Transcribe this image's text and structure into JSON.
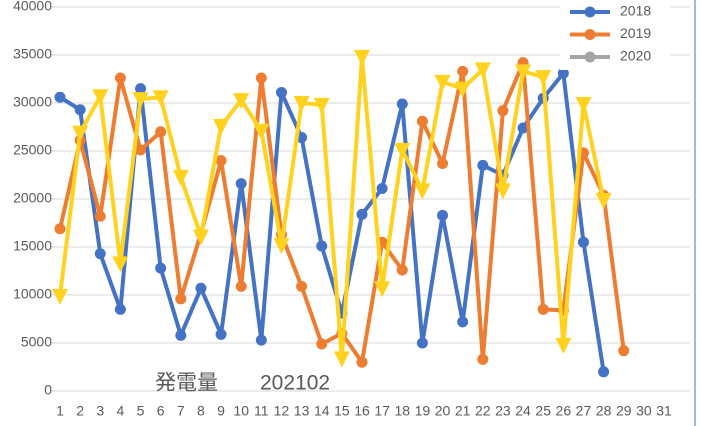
{
  "chart_data": {
    "type": "line",
    "title": "発電量　　202102",
    "categories": [
      "1",
      "2",
      "3",
      "4",
      "5",
      "6",
      "7",
      "8",
      "9",
      "10",
      "11",
      "12",
      "13",
      "14",
      "15",
      "16",
      "17",
      "18",
      "19",
      "20",
      "21",
      "22",
      "23",
      "24",
      "25",
      "26",
      "27",
      "28",
      "29",
      "30",
      "31"
    ],
    "ylim": [
      0,
      40000
    ],
    "yticks": [
      0,
      5000,
      10000,
      15000,
      20000,
      25000,
      30000,
      35000,
      40000
    ],
    "grid": true,
    "legend": "top-right",
    "series": [
      {
        "name": "2018",
        "color": "#4472c4",
        "marker": "circle",
        "values": [
          30600,
          29300,
          14300,
          8500,
          31500,
          12800,
          5800,
          10700,
          5900,
          21600,
          5300,
          31100,
          26400,
          15100,
          8100,
          18400,
          21100,
          29900,
          5000,
          18300,
          7200,
          23500,
          22500,
          27400,
          30500,
          33100,
          15500,
          2000,
          null,
          null,
          null
        ]
      },
      {
        "name": "2019",
        "color": "#ed7d31",
        "marker": "circle",
        "values": [
          16900,
          26100,
          18200,
          32600,
          25100,
          27000,
          9600,
          16400,
          24000,
          10900,
          32600,
          16300,
          10900,
          4900,
          6000,
          3000,
          15500,
          12600,
          28100,
          23700,
          33300,
          3300,
          29200,
          34200,
          8500,
          8400,
          24800,
          20400,
          4200,
          null,
          null
        ]
      },
      {
        "name": "2020",
        "color": "#a5a5a5",
        "marker": "circle",
        "values": [
          null,
          null,
          null,
          null,
          null,
          null,
          null,
          null,
          null,
          null,
          null,
          null,
          null,
          null,
          null,
          null,
          null,
          null,
          null,
          null,
          null,
          null,
          null,
          null,
          null,
          null,
          null,
          null,
          null,
          null,
          null
        ]
      },
      {
        "color": "#ffd21f",
        "marker": "triangle-down",
        "values": [
          9900,
          26900,
          30700,
          13300,
          30400,
          30600,
          22300,
          16100,
          27600,
          30300,
          27100,
          15200,
          30000,
          29800,
          3400,
          34800,
          10700,
          25100,
          20900,
          32200,
          31500,
          33500,
          20900,
          33300,
          32700,
          4800,
          29900,
          19900,
          null,
          null,
          null
        ]
      }
    ]
  }
}
